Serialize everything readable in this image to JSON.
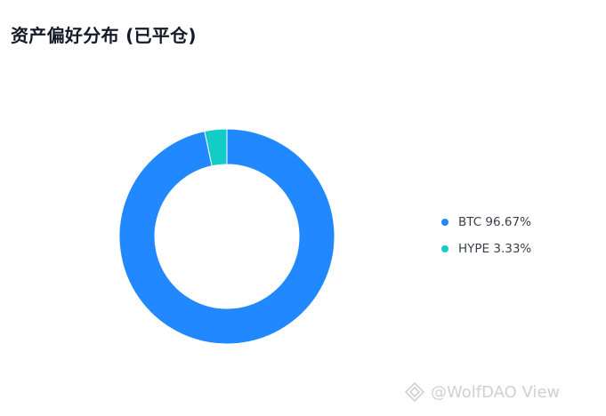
{
  "header": {
    "title": "资产偏好分布 (已平仓)"
  },
  "chart_data": {
    "type": "pie",
    "variant": "donut",
    "categories": [
      "BTC",
      "HYPE"
    ],
    "values": [
      96.67,
      3.33
    ],
    "colors": [
      "#2288ff",
      "#12cdc6"
    ],
    "legend": [
      {
        "label": "BTC 96.67%",
        "color": "#2288ff"
      },
      {
        "label": "HYPE 3.33%",
        "color": "#12cdc6"
      }
    ],
    "legend_position": "right"
  },
  "watermark": {
    "text": "@WolfDAO View"
  }
}
